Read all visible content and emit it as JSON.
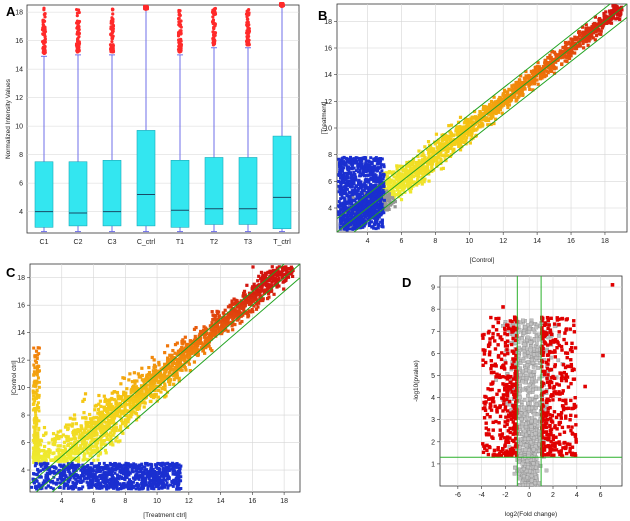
{
  "chart_data": [
    {
      "panel": "A",
      "type": "box",
      "ylabel": "Normalized Intensity Values",
      "ylim": [
        2.5,
        18.5
      ],
      "yticks": [
        4,
        6,
        8,
        10,
        12,
        14,
        16,
        18
      ],
      "categories": [
        "C1",
        "C2",
        "C3",
        "C_ctrl",
        "T1",
        "T2",
        "T3",
        "T_ctrl"
      ],
      "boxes": [
        {
          "min": 2.6,
          "q1": 2.9,
          "median": 4.0,
          "q3": 7.5,
          "max": 14.9,
          "outlier_top": 18.3
        },
        {
          "min": 2.6,
          "q1": 3.0,
          "median": 3.9,
          "q3": 7.5,
          "max": 15.0,
          "outlier_top": 18.3
        },
        {
          "min": 2.6,
          "q1": 3.0,
          "median": 4.0,
          "q3": 7.6,
          "max": 15.0,
          "outlier_top": 18.3
        },
        {
          "min": 2.6,
          "q1": 3.0,
          "median": 5.2,
          "q3": 9.7,
          "max": 18.2,
          "outlier_top": 18.2
        },
        {
          "min": 2.6,
          "q1": 2.9,
          "median": 4.1,
          "q3": 7.6,
          "max": 15.0,
          "outlier_top": 18.3
        },
        {
          "min": 2.6,
          "q1": 3.1,
          "median": 4.2,
          "q3": 7.8,
          "max": 15.5,
          "outlier_top": 18.3
        },
        {
          "min": 2.6,
          "q1": 3.1,
          "median": 4.2,
          "q3": 7.8,
          "max": 15.5,
          "outlier_top": 18.3
        },
        {
          "min": 2.6,
          "q1": 2.8,
          "median": 5.0,
          "q3": 9.3,
          "max": 18.4,
          "outlier_top": 18.4
        }
      ],
      "colors": {
        "box": "#33e6f0",
        "whisker": "#6f6fe8",
        "outlier": "#ff2a2a"
      }
    },
    {
      "panel": "B",
      "type": "scatter",
      "xlabel": "[Control]",
      "ylabel": "[Treatment]",
      "xlim": [
        2.2,
        19.3
      ],
      "ylim": [
        2.2,
        19.3
      ],
      "xticks": [
        4,
        6,
        8,
        10,
        12,
        14,
        16,
        18
      ],
      "yticks": [
        4,
        6,
        8,
        10,
        12,
        14,
        16,
        18
      ],
      "fold_lines": [
        "y = x",
        "y = x + 1",
        "y = x - 1"
      ]
    },
    {
      "panel": "C",
      "type": "scatter",
      "xlabel": "[Treatment ctrl]",
      "ylabel": "[Control ctrl]",
      "xlim": [
        2.0,
        19.0
      ],
      "ylim": [
        2.4,
        19.0
      ],
      "xticks": [
        4,
        6,
        8,
        10,
        12,
        14,
        16,
        18
      ],
      "yticks": [
        4,
        6,
        8,
        10,
        12,
        14,
        16,
        18
      ],
      "fold_lines": [
        "y = x",
        "y = x + 1",
        "y = x - 1"
      ]
    },
    {
      "panel": "D",
      "type": "volcano",
      "xlabel": "log2(Fold change)",
      "ylabel": "-log10(pvalue)",
      "xlim": [
        -7.5,
        7.8
      ],
      "ylim": [
        0,
        9.5
      ],
      "xticks": [
        -6,
        -4,
        -2,
        0,
        2,
        4,
        6
      ],
      "yticks": [
        1,
        2,
        3,
        4,
        5,
        6,
        7,
        8,
        9
      ],
      "thresholds": {
        "fold_change_log2": [
          -1,
          1
        ],
        "neg_log10_p": 1.3
      }
    }
  ],
  "panel_labels": {
    "a": "A",
    "b": "B",
    "c": "C",
    "d": "D"
  }
}
